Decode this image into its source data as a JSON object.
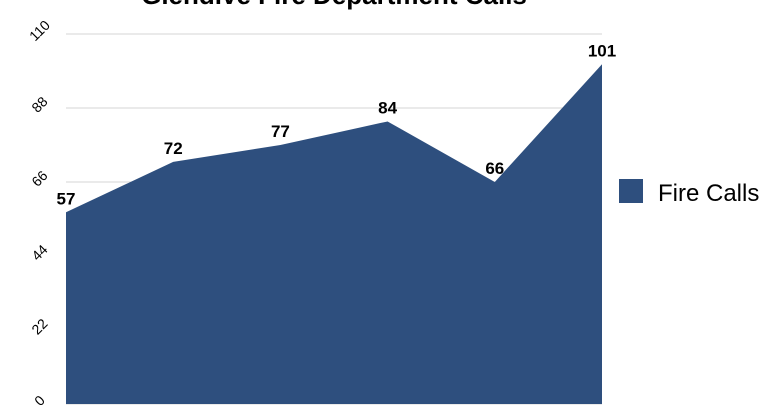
{
  "chart_data": {
    "type": "area",
    "title": "Glendive Fire Department Calls",
    "xlabel": "",
    "ylabel": "",
    "categories": [
      "",
      "",
      "",
      "",
      "",
      ""
    ],
    "ylim": [
      0,
      110
    ],
    "yticks": [
      "0",
      "22",
      "44",
      "66",
      "88",
      "110"
    ],
    "grid": true,
    "legend": "right",
    "series": [
      {
        "name": "Fire Calls",
        "values": [
          57,
          72,
          77,
          84,
          66,
          101
        ],
        "color": "#2e4f7e"
      }
    ]
  }
}
